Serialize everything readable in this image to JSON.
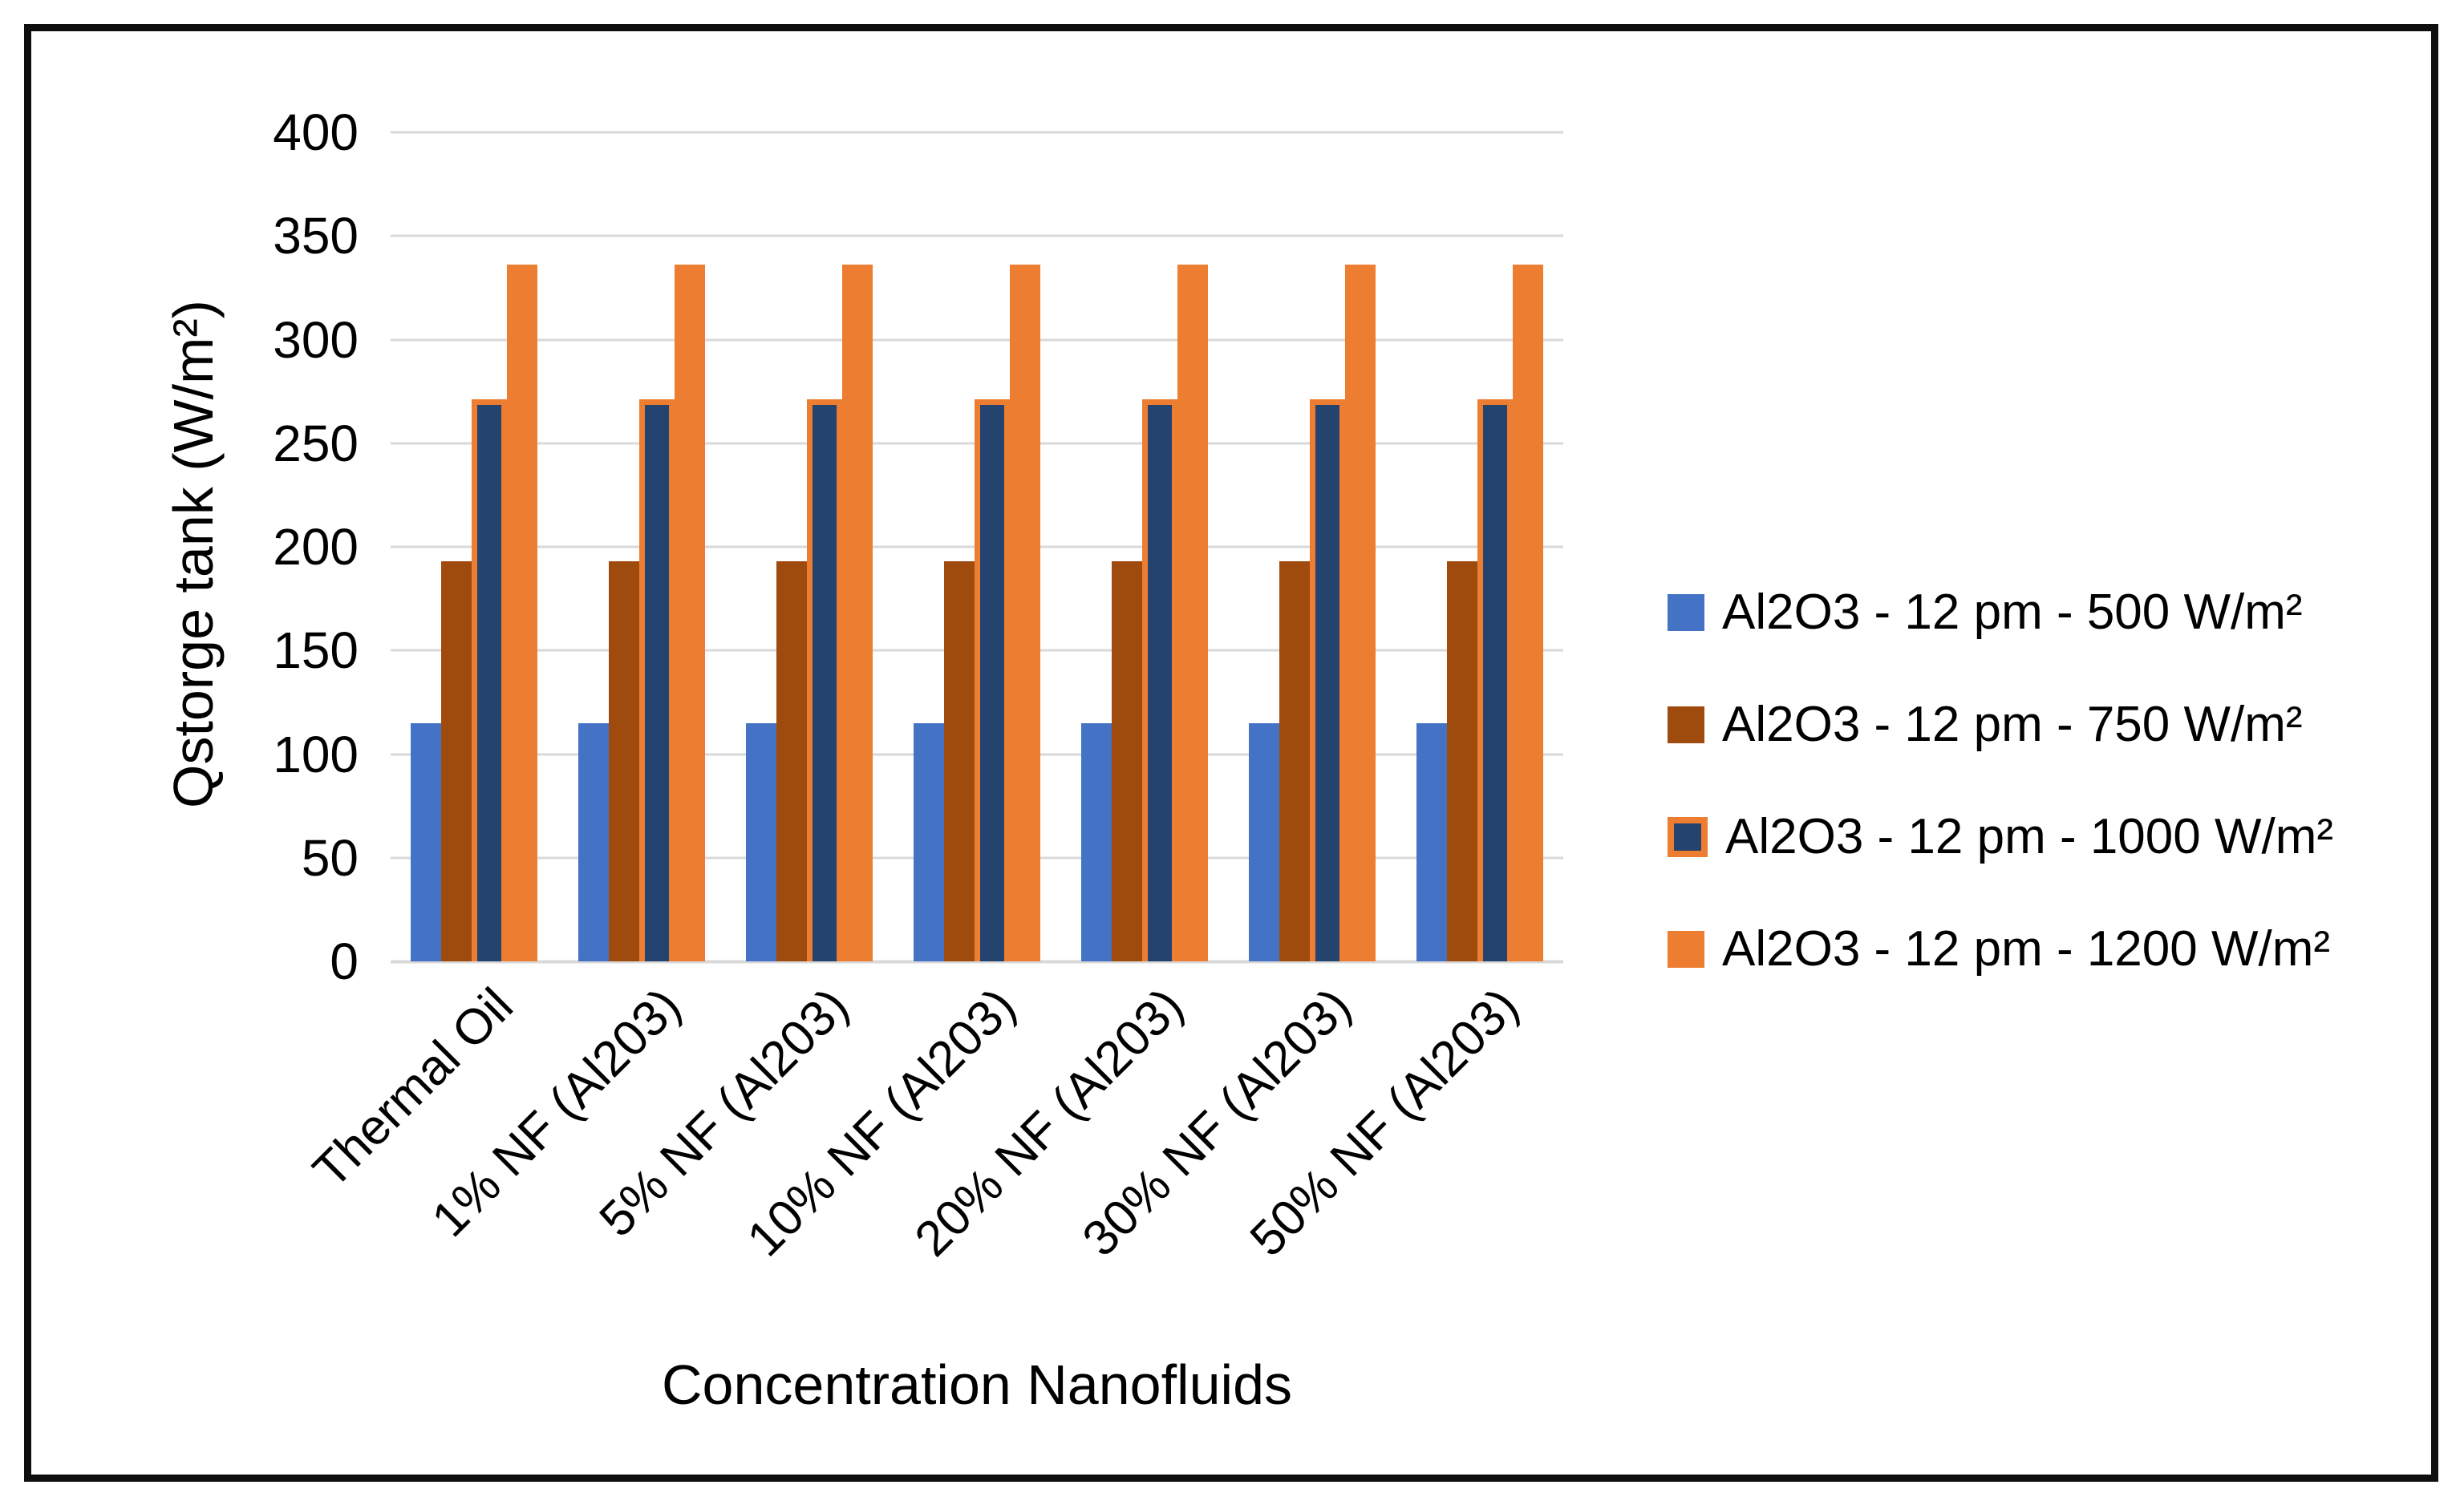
{
  "chart_data": {
    "type": "bar",
    "title": "",
    "xlabel": "Concentration Nanofluids",
    "ylabel": "Qstorge tank (W/m²)",
    "categories": [
      "Thermal Oil",
      "1% NF (Al203)",
      "5% NF (Al203)",
      "10% NF (Al203)",
      "20% NF (Al203)",
      "30% NF (Al203)",
      "50% NF (Al203)"
    ],
    "series": [
      {
        "name": "Al2O3 - 12 pm - 500 W/m²",
        "color": "#4472C4",
        "values": [
          115,
          115,
          115,
          115,
          115,
          115,
          115
        ]
      },
      {
        "name": "Al2O3 - 12 pm - 750 W/m²",
        "color": "#A04B0E",
        "values": [
          193,
          193,
          193,
          193,
          193,
          193,
          193
        ]
      },
      {
        "name": "Al2O3 - 12 pm - 1000 W/m²",
        "color": "#24436E",
        "border_color": "#ED7D31",
        "values": [
          271,
          271,
          271,
          271,
          271,
          271,
          271
        ]
      },
      {
        "name": "Al2O3 - 12 pm - 1200 W/m²",
        "color": "#ED7D31",
        "values": [
          336,
          336,
          336,
          336,
          336,
          336,
          336
        ]
      }
    ],
    "ylim": [
      0,
      400
    ],
    "yticks": [
      0,
      50,
      100,
      150,
      200,
      250,
      300,
      350,
      400
    ],
    "grid": true,
    "gridline_color": "#D9D9D9",
    "legend_position": "right",
    "category_label_rotation_deg": -45
  }
}
